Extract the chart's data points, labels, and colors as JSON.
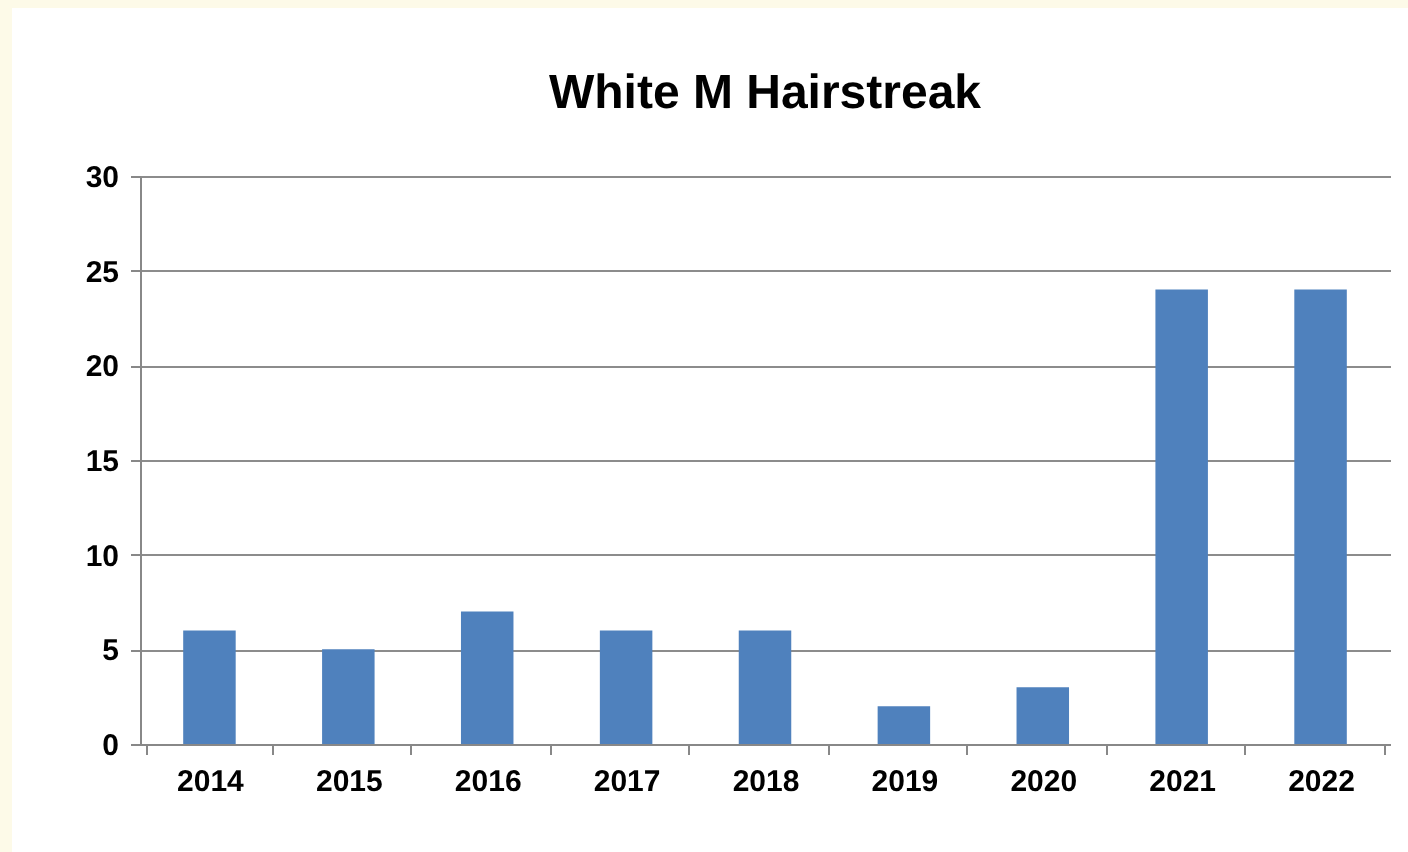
{
  "chart_data": {
    "type": "bar",
    "title": "White M Hairstreak",
    "categories": [
      "2014",
      "2015",
      "2016",
      "2017",
      "2018",
      "2019",
      "2020",
      "2021",
      "2022"
    ],
    "values": [
      6,
      5,
      7,
      6,
      6,
      2,
      3,
      24,
      24
    ],
    "color": "#4f81bd",
    "ylim": [
      0,
      30
    ],
    "yticks": [
      0,
      5,
      10,
      15,
      20,
      25,
      30
    ],
    "grid": "y"
  }
}
